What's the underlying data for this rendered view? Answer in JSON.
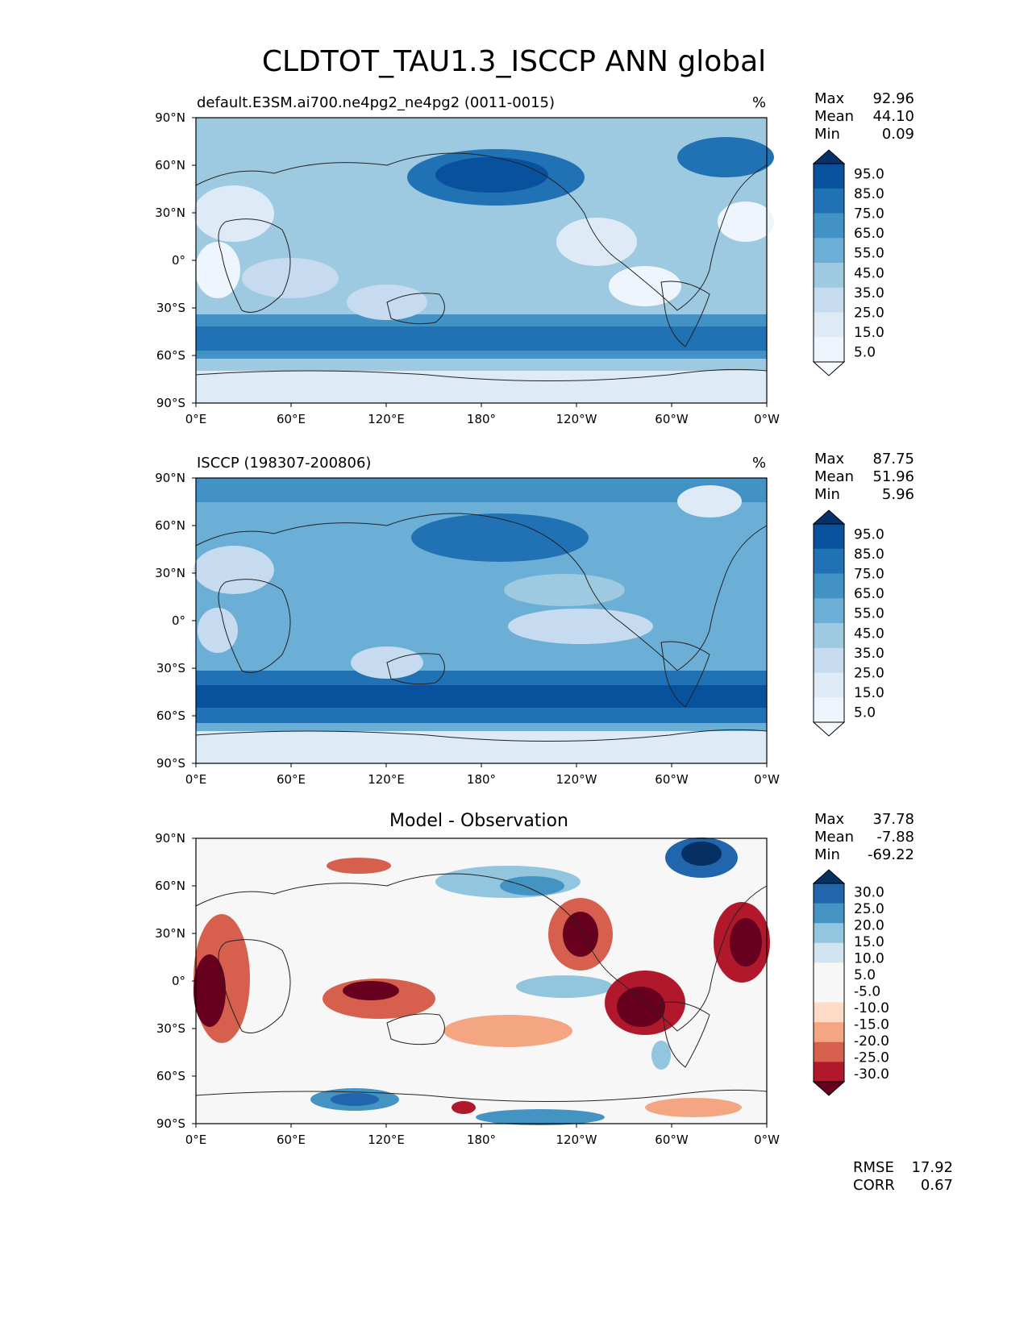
{
  "title": "CLDTOT_TAU1.3_ISCCP ANN global",
  "panels": [
    {
      "id": "test",
      "title": "default.E3SM.ai700.ne4pg2_ne4pg2 (0011-0015)",
      "units": "%",
      "stats": {
        "max_label": "Max",
        "max": "92.96",
        "mean_label": "Mean",
        "mean": "44.10",
        "min_label": "Min",
        "min": "0.09"
      },
      "colorbar_labels": [
        "95.0",
        "85.0",
        "75.0",
        "65.0",
        "55.0",
        "45.0",
        "35.0",
        "25.0",
        "15.0",
        "5.0"
      ],
      "colorbar_colors": [
        "#08306b",
        "#08519c",
        "#2171b5",
        "#4292c6",
        "#6baed6",
        "#9ecae1",
        "#c6dbef",
        "#deebf7",
        "#eef5fc",
        "#f7fbff"
      ],
      "background": "#9ecae1"
    },
    {
      "id": "ref",
      "title": "ISCCP (198307-200806)",
      "units": "%",
      "stats": {
        "max_label": "Max",
        "max": "87.75",
        "mean_label": "Mean",
        "mean": "51.96",
        "min_label": "Min",
        "min": "5.96"
      },
      "colorbar_labels": [
        "95.0",
        "85.0",
        "75.0",
        "65.0",
        "55.0",
        "45.0",
        "35.0",
        "25.0",
        "15.0",
        "5.0"
      ],
      "colorbar_colors": [
        "#08306b",
        "#08519c",
        "#2171b5",
        "#4292c6",
        "#6baed6",
        "#9ecae1",
        "#c6dbef",
        "#deebf7",
        "#eef5fc",
        "#f7fbff"
      ],
      "background": "#6baed6"
    },
    {
      "id": "diff",
      "title": "Model - Observation",
      "units": "",
      "stats": {
        "max_label": "Max",
        "max": "37.78",
        "mean_label": "Mean",
        "mean": "-7.88",
        "min_label": "Min",
        "min": "-69.22"
      },
      "colorbar_labels": [
        "30.0",
        "25.0",
        "20.0",
        "15.0",
        "10.0",
        "5.0",
        "-5.0",
        "-10.0",
        "-15.0",
        "-20.0",
        "-25.0",
        "-30.0"
      ],
      "colorbar_colors": [
        "#053061",
        "#2166ac",
        "#4393c3",
        "#92c5de",
        "#d1e5f0",
        "#f7f7f7",
        "#f7f7f7",
        "#fddbc7",
        "#f4a582",
        "#d6604d",
        "#b2182b",
        "#67001f"
      ],
      "background": "#f7f7f7"
    }
  ],
  "lat_ticks": [
    "90°N",
    "60°N",
    "30°N",
    "0°",
    "30°S",
    "60°S",
    "90°S"
  ],
  "lon_ticks": [
    "0°E",
    "60°E",
    "120°E",
    "180°",
    "120°W",
    "60°W",
    "0°W"
  ],
  "metrics": {
    "rmse_label": "RMSE",
    "rmse": "17.92",
    "corr_label": "CORR",
    "corr": "0.67"
  }
}
